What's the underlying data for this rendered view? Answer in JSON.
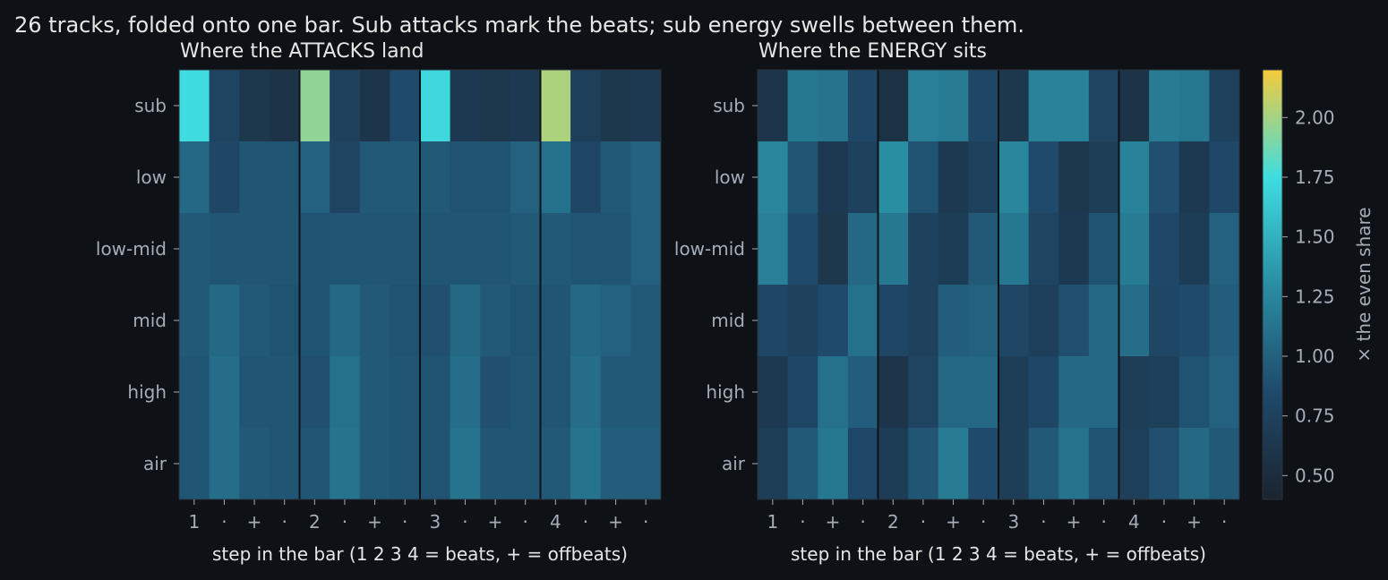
{
  "figure": {
    "suptitle": "26 tracks, folded onto one bar. Sub attacks mark the beats; sub energy swells between them.",
    "colors": {
      "background": "#0e1116",
      "title_text": "#e6e6e6",
      "tick_text": "#a5adb8",
      "axis_text": "#e6e6e6",
      "beat_divider": "#0e1116",
      "spine": "#2b3138"
    },
    "colorscale": [
      "#1b2430",
      "#1f4a6b",
      "#2a8ea3",
      "#3fdde0",
      "#f5cb3c"
    ]
  },
  "colorbar": {
    "label": "× the even share",
    "vmin": 0.4,
    "vmax": 2.2,
    "ticks": [
      "0.50",
      "0.75",
      "1.00",
      "1.25",
      "1.50",
      "1.75",
      "2.00"
    ]
  },
  "chart_data": [
    {
      "type": "heatmap",
      "title": "Where the ATTACKS land",
      "xlabel": "step in the bar (1 2 3 4 = beats, + = offbeats)",
      "ylabel": "",
      "x_ticks": [
        "1",
        "·",
        "+",
        "·",
        "2",
        "·",
        "+",
        "·",
        "3",
        "·",
        "+",
        "·",
        "4",
        "·",
        "+",
        "·"
      ],
      "y_ticks": [
        "sub",
        "low",
        "low-mid",
        "mid",
        "high",
        "air"
      ],
      "beat_dividers_after_steps": [
        4,
        8,
        12
      ],
      "values": [
        [
          1.75,
          0.78,
          0.62,
          0.58,
          1.95,
          0.75,
          0.6,
          0.85,
          1.72,
          0.65,
          0.62,
          0.65,
          2.02,
          0.72,
          0.62,
          0.65
        ],
        [
          1.05,
          0.8,
          0.92,
          0.92,
          1.0,
          0.78,
          0.95,
          0.95,
          0.95,
          0.9,
          0.9,
          1.0,
          1.1,
          0.8,
          0.95,
          1.0
        ],
        [
          0.95,
          0.92,
          0.92,
          0.92,
          0.9,
          0.92,
          0.92,
          0.92,
          0.92,
          0.92,
          0.92,
          0.95,
          0.95,
          0.92,
          0.92,
          1.0
        ],
        [
          0.95,
          1.05,
          0.95,
          0.9,
          0.9,
          1.05,
          0.95,
          0.9,
          0.88,
          1.05,
          0.95,
          0.9,
          0.92,
          1.05,
          1.0,
          0.95
        ],
        [
          0.92,
          1.08,
          0.92,
          0.92,
          0.88,
          1.1,
          0.95,
          0.92,
          0.9,
          1.08,
          0.88,
          0.92,
          0.92,
          1.08,
          0.95,
          0.95
        ],
        [
          0.92,
          1.08,
          0.95,
          0.92,
          0.92,
          1.12,
          0.95,
          0.92,
          0.9,
          1.12,
          0.92,
          0.92,
          0.95,
          1.12,
          0.98,
          0.98
        ]
      ]
    },
    {
      "type": "heatmap",
      "title": "Where the ENERGY sits",
      "xlabel": "step in the bar (1 2 3 4 = beats, + = offbeats)",
      "ylabel": "",
      "x_ticks": [
        "1",
        "·",
        "+",
        "·",
        "2",
        "·",
        "+",
        "·",
        "3",
        "·",
        "+",
        "·",
        "4",
        "·",
        "+",
        "·"
      ],
      "y_ticks": [
        "sub",
        "low",
        "low-mid",
        "mid",
        "high",
        "air"
      ],
      "beat_dividers_after_steps": [
        4,
        8,
        12
      ],
      "values": [
        [
          0.6,
          1.15,
          1.12,
          0.8,
          0.55,
          1.2,
          1.18,
          0.8,
          0.62,
          1.22,
          1.22,
          0.78,
          0.58,
          1.18,
          1.15,
          0.75
        ],
        [
          1.25,
          0.92,
          0.65,
          0.75,
          1.3,
          0.9,
          0.65,
          0.75,
          1.25,
          0.85,
          0.62,
          0.7,
          1.22,
          0.88,
          0.65,
          0.82
        ],
        [
          1.2,
          0.85,
          0.62,
          1.05,
          1.15,
          0.75,
          0.68,
          0.95,
          1.15,
          0.78,
          0.65,
          0.9,
          1.18,
          0.82,
          0.68,
          1.0
        ],
        [
          0.8,
          0.75,
          0.85,
          1.1,
          0.8,
          0.75,
          0.98,
          1.0,
          0.8,
          0.72,
          0.88,
          1.05,
          1.08,
          0.8,
          0.85,
          0.98
        ],
        [
          0.65,
          0.8,
          1.1,
          0.98,
          0.6,
          0.78,
          1.05,
          1.05,
          0.7,
          0.8,
          1.05,
          1.05,
          0.7,
          0.72,
          0.9,
          1.0
        ],
        [
          0.7,
          0.95,
          1.15,
          0.82,
          0.68,
          0.92,
          1.18,
          0.85,
          0.7,
          0.95,
          1.12,
          0.9,
          0.72,
          0.88,
          1.05,
          0.95
        ]
      ]
    }
  ]
}
